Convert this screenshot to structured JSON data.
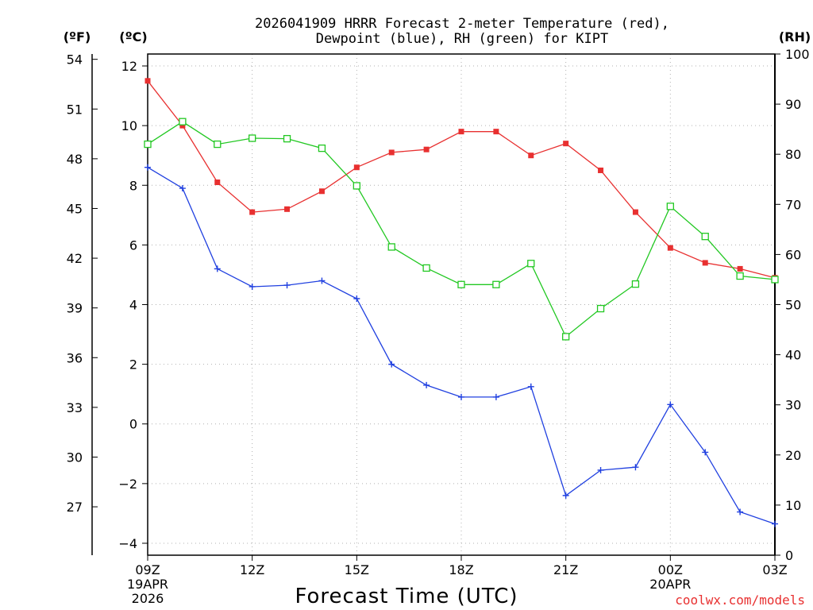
{
  "chart_data": {
    "type": "line",
    "title_line1": "2026041909 HRRR Forecast 2-meter Temperature (red),",
    "title_line2": "Dewpoint (blue), RH (green) for KIPT",
    "xlabel": "Forecast Time (UTC)",
    "credit": "coolwx.com/models",
    "unit_labels": {
      "fahrenheit": "(ºF)",
      "celsius": "(ºC)",
      "rh": "(RH)"
    },
    "x_hours": [
      0,
      1,
      2,
      3,
      4,
      5,
      6,
      7,
      8,
      9,
      10,
      11,
      12,
      13,
      14,
      15,
      16,
      17,
      18
    ],
    "x_ticks": [
      {
        "hour": 0,
        "label": "09Z",
        "sub1": "19APR",
        "sub2": "2026"
      },
      {
        "hour": 3,
        "label": "12Z",
        "sub1": "",
        "sub2": ""
      },
      {
        "hour": 6,
        "label": "15Z",
        "sub1": "",
        "sub2": ""
      },
      {
        "hour": 9,
        "label": "18Z",
        "sub1": "",
        "sub2": ""
      },
      {
        "hour": 12,
        "label": "21Z",
        "sub1": "",
        "sub2": ""
      },
      {
        "hour": 15,
        "label": "00Z",
        "sub1": "20APR",
        "sub2": ""
      },
      {
        "hour": 18,
        "label": "03Z",
        "sub1": "",
        "sub2": ""
      }
    ],
    "ylim_c": [
      -4.4,
      12.4
    ],
    "yticks_c": [
      -4,
      -2,
      0,
      2,
      4,
      6,
      8,
      10,
      12
    ],
    "yticks_f": [
      27,
      30,
      33,
      36,
      39,
      42,
      45,
      48,
      51,
      54
    ],
    "ylim_rh": [
      0,
      100
    ],
    "yticks_rh": [
      0,
      10,
      20,
      30,
      40,
      50,
      60,
      70,
      80,
      90,
      100
    ],
    "grid": true,
    "series": [
      {
        "name": "Temperature",
        "color": "#e83030",
        "axis": "celsius",
        "marker": "filled-square",
        "values": [
          11.5,
          10.0,
          8.1,
          7.1,
          7.2,
          7.8,
          8.6,
          9.1,
          9.2,
          9.8,
          9.8,
          9.0,
          9.4,
          8.5,
          7.1,
          5.9,
          5.4,
          5.2,
          4.9
        ]
      },
      {
        "name": "Dewpoint",
        "color": "#2040e0",
        "axis": "celsius",
        "marker": "plus",
        "values": [
          8.6,
          7.9,
          5.2,
          4.6,
          4.65,
          4.8,
          4.2,
          2.0,
          1.3,
          0.9,
          0.9,
          1.25,
          -2.4,
          -1.55,
          -1.45,
          0.65,
          -0.95,
          -2.95,
          -3.35
        ]
      },
      {
        "name": "RH",
        "color": "#22c822",
        "axis": "rh",
        "marker": "open-square",
        "values": [
          82,
          86.5,
          82,
          83.2,
          83.1,
          81.2,
          73.7,
          61.5,
          57.3,
          54,
          54,
          58.2,
          43.6,
          49.2,
          54.1,
          69.6,
          63.6,
          55.7,
          55
        ]
      }
    ]
  }
}
